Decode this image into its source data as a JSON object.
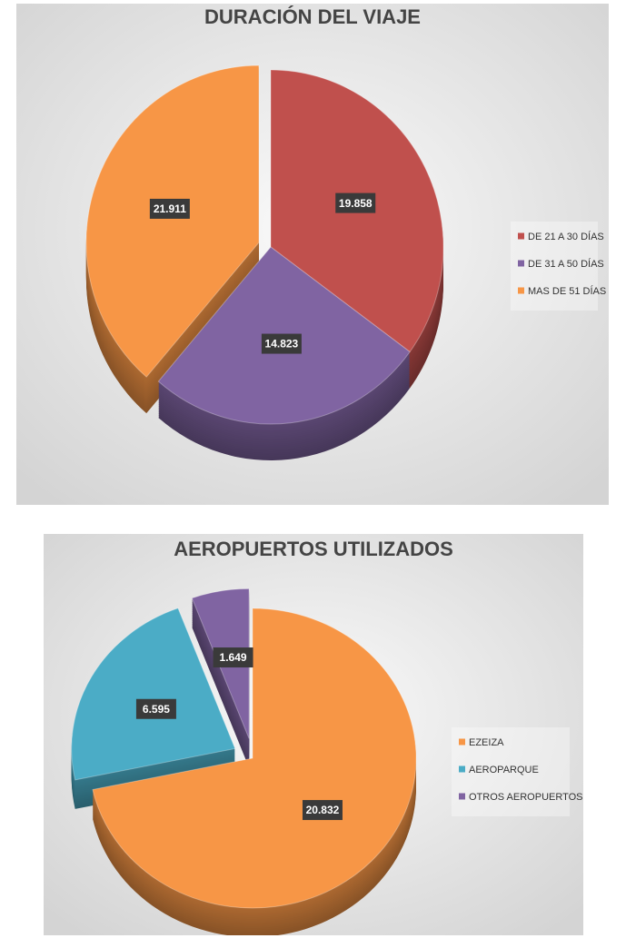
{
  "chart_data": [
    {
      "type": "pie",
      "title": "DURACIÓN DEL VIAJE",
      "categories": [
        "DE 21 A 30 DÍAS",
        "DE 31 A 50 DÍAS",
        "MAS DE 51 DÍAS"
      ],
      "values": [
        19858,
        14823,
        21911
      ],
      "value_labels": [
        "19.858",
        "14.823",
        "21.911"
      ],
      "colors": [
        "#c0504d",
        "#8064a2",
        "#f79646"
      ],
      "legend": "right"
    },
    {
      "type": "pie",
      "title": "AEROPUERTOS UTILIZADOS",
      "categories": [
        "EZEIZA",
        "AEROPARQUE",
        "OTROS AEROPUERTOS"
      ],
      "values": [
        20832,
        6595,
        1649
      ],
      "value_labels": [
        "20.832",
        "6.595",
        "1.649"
      ],
      "colors": [
        "#f79646",
        "#4bacc6",
        "#8064a2"
      ],
      "legend": "right"
    }
  ]
}
